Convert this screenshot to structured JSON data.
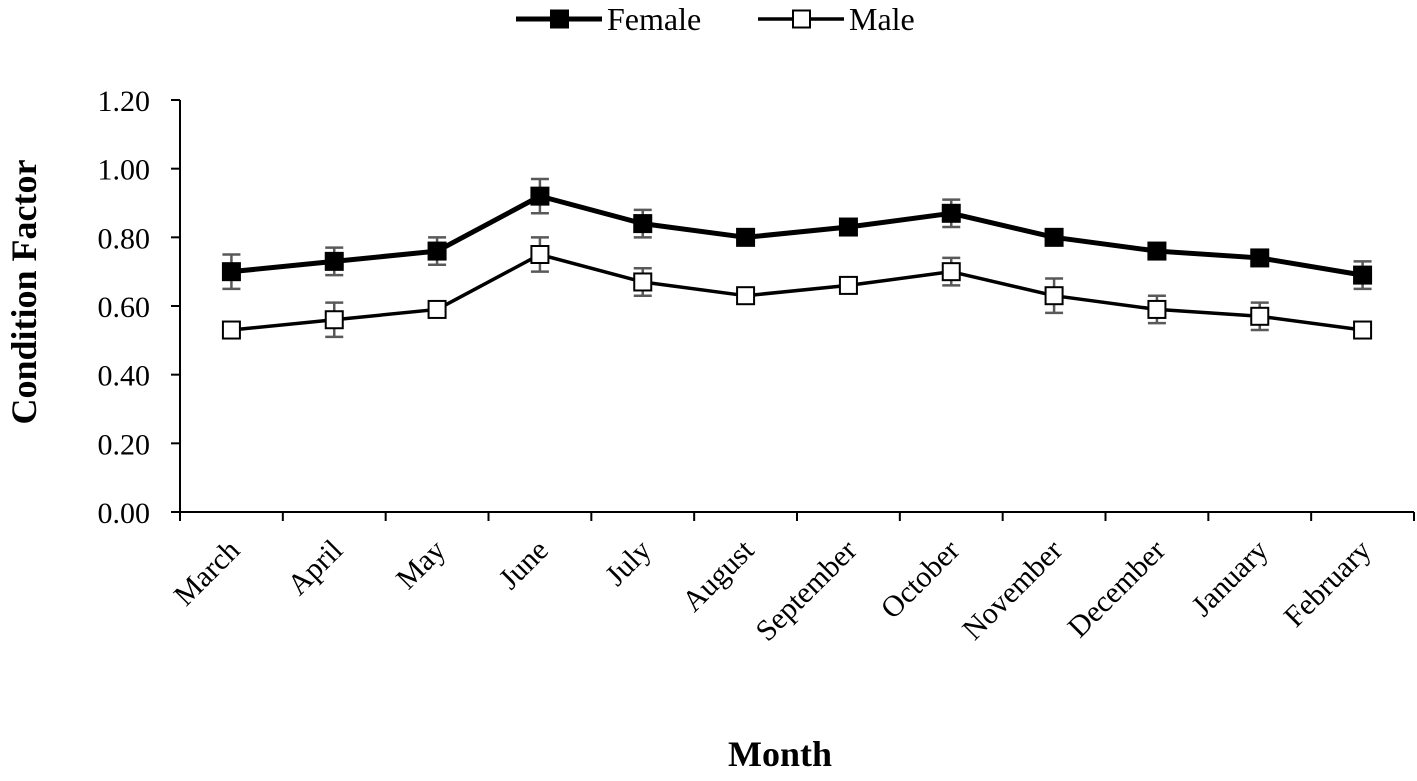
{
  "chart_data": {
    "type": "line",
    "title": "",
    "xlabel": "Month",
    "ylabel": "Condition Factor",
    "ylim": [
      0,
      1.2
    ],
    "yticks": [
      "0.00",
      "0.20",
      "0.40",
      "0.60",
      "0.80",
      "1.00",
      "1.20"
    ],
    "ytick_values": [
      0,
      0.2,
      0.4,
      0.6,
      0.8,
      1.0,
      1.2
    ],
    "categories": [
      "March",
      "April",
      "May",
      "June",
      "July",
      "August",
      "September",
      "October",
      "November",
      "December",
      "January",
      "February"
    ],
    "series": [
      {
        "name": "Female",
        "marker": "filled-square",
        "values": [
          0.7,
          0.73,
          0.76,
          0.92,
          0.84,
          0.8,
          0.83,
          0.87,
          0.8,
          0.76,
          0.74,
          0.69
        ],
        "errors": [
          0.05,
          0.04,
          0.04,
          0.05,
          0.04,
          0.02,
          0.02,
          0.04,
          0.02,
          0.02,
          0.02,
          0.04
        ]
      },
      {
        "name": "Male",
        "marker": "open-square",
        "values": [
          0.53,
          0.56,
          0.59,
          0.75,
          0.67,
          0.63,
          0.66,
          0.7,
          0.63,
          0.59,
          0.57,
          0.53
        ],
        "errors": [
          0.02,
          0.05,
          0.02,
          0.05,
          0.04,
          0.02,
          0.02,
          0.04,
          0.05,
          0.04,
          0.04,
          0.02
        ]
      }
    ],
    "legend_position": "top-center",
    "colors": {
      "line": "#000000",
      "error_bar": "#595959",
      "open_fill": "#ffffff"
    }
  }
}
